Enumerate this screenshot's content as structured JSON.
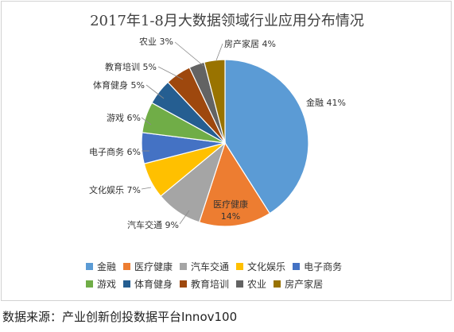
{
  "chart_data": {
    "type": "pie",
    "title": "2017年1-8月大数据领域行业应用分布情况",
    "categories": [
      "金融",
      "医疗健康",
      "汽车交通",
      "文化娱乐",
      "电子商务",
      "游戏",
      "体育健身",
      "教育培训",
      "农业",
      "房产家居"
    ],
    "values": [
      41,
      14,
      9,
      7,
      6,
      6,
      5,
      5,
      3,
      4
    ],
    "unit": "%",
    "data_labels": [
      "金融 41%",
      "医疗健康 14%",
      "汽车交通 9%",
      "文化娱乐 7%",
      "电子商务 6%",
      "游戏 6%",
      "体育健身 5%",
      "教育培训 5%",
      "农业 3%",
      "房产家居 4%"
    ],
    "colors": [
      "#5B9BD5",
      "#ED7D31",
      "#A5A5A5",
      "#FFC000",
      "#4472C4",
      "#70AD47",
      "#255E91",
      "#9E480E",
      "#636363",
      "#997300"
    ],
    "legend_position": "bottom",
    "legend_rows": [
      [
        "金融",
        "医疗健康",
        "汽车交通",
        "文化娱乐",
        "电子商务"
      ],
      [
        "游戏",
        "体育健身",
        "教育培训",
        "农业",
        "房产家居"
      ]
    ]
  },
  "source_text": "数据来源：产业创新创投数据平台Innov100"
}
